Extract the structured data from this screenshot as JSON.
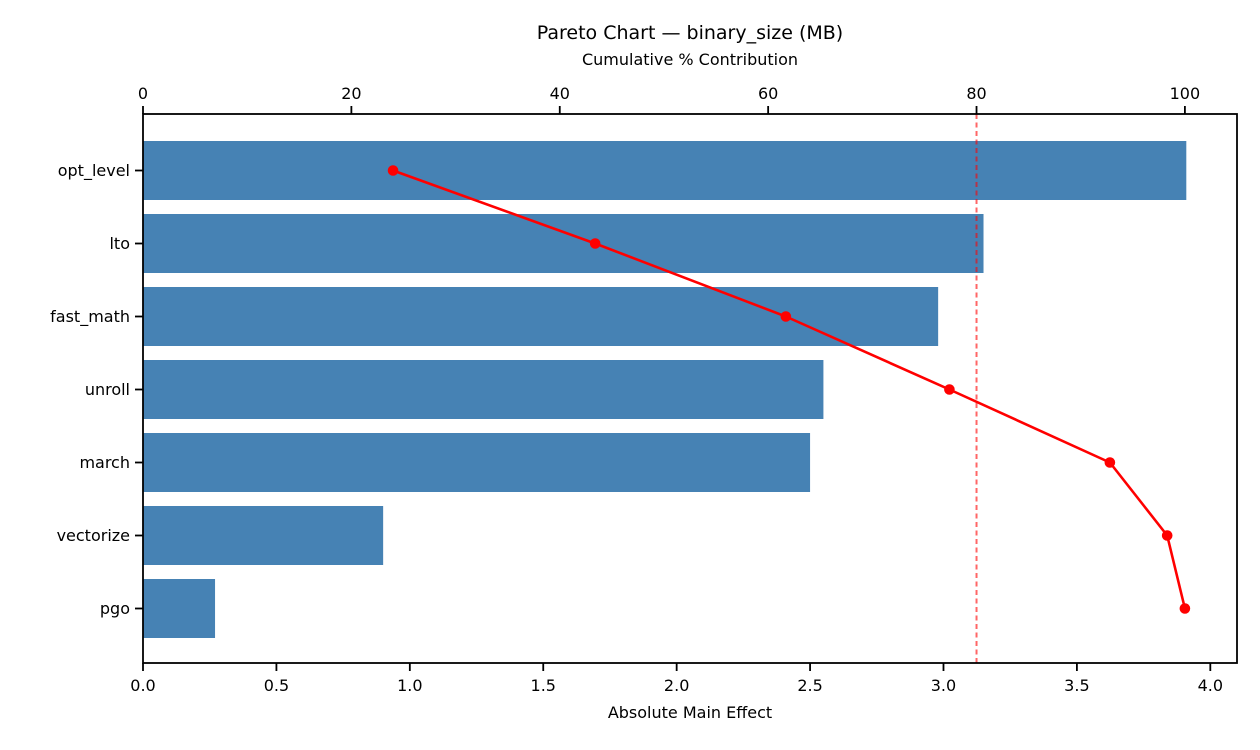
{
  "chart_data": {
    "type": "bar",
    "orientation": "horizontal",
    "title": "Pareto Chart — binary_size (MB)",
    "top_axis_label": "Cumulative % Contribution",
    "xlabel": "Absolute Main Effect",
    "ylabel": "",
    "categories": [
      "opt_level",
      "lto",
      "fast_math",
      "unroll",
      "march",
      "vectorize",
      "pgo"
    ],
    "values": [
      3.91,
      3.15,
      2.98,
      2.55,
      2.5,
      0.9,
      0.27
    ],
    "series": [
      {
        "name": "Absolute Main Effect",
        "type": "bar",
        "values": [
          3.91,
          3.15,
          2.98,
          2.55,
          2.5,
          0.9,
          0.27
        ]
      },
      {
        "name": "Cumulative % Contribution",
        "type": "line",
        "values": [
          24.0,
          43.4,
          61.7,
          77.4,
          92.8,
          98.3,
          100.0
        ]
      }
    ],
    "threshold_pct": 80,
    "xlim": [
      0,
      4.1
    ],
    "top_xlim": [
      0,
      105
    ],
    "x_ticks": [
      {
        "v": 0.0,
        "label": "0.0"
      },
      {
        "v": 0.5,
        "label": "0.5"
      },
      {
        "v": 1.0,
        "label": "1.0"
      },
      {
        "v": 1.5,
        "label": "1.5"
      },
      {
        "v": 2.0,
        "label": "2.0"
      },
      {
        "v": 2.5,
        "label": "2.5"
      },
      {
        "v": 3.0,
        "label": "3.0"
      },
      {
        "v": 3.5,
        "label": "3.5"
      },
      {
        "v": 4.0,
        "label": "4.0"
      }
    ],
    "top_ticks": [
      {
        "v": 0,
        "label": "0"
      },
      {
        "v": 20,
        "label": "20"
      },
      {
        "v": 40,
        "label": "40"
      },
      {
        "v": 60,
        "label": "60"
      },
      {
        "v": 80,
        "label": "80"
      },
      {
        "v": 100,
        "label": "100"
      }
    ],
    "grid": false,
    "legend": "none",
    "colors": {
      "bar": "#4682B4",
      "line": "#FF0000",
      "threshold": "#FF0000",
      "spine": "#000000",
      "text": "#000000"
    }
  }
}
